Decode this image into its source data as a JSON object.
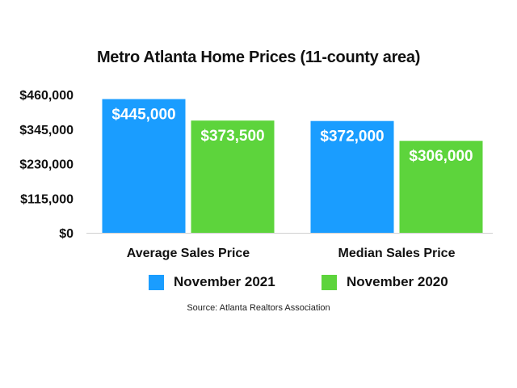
{
  "chart_data": {
    "type": "bar",
    "title": "Metro Atlanta Home Prices (11-county area)",
    "categories": [
      "Average Sales Price",
      "Median Sales Price"
    ],
    "series": [
      {
        "name": "November 2021",
        "color": "#1a9dff",
        "values": [
          445000,
          372000
        ],
        "labels": [
          "$445,000",
          "$372,000"
        ]
      },
      {
        "name": "November 2020",
        "color": "#5dd43c",
        "values": [
          373500,
          306000
        ],
        "labels": [
          "$373,500",
          "$306,000"
        ]
      }
    ],
    "ylim": [
      0,
      460000
    ],
    "yticks": [
      0,
      115000,
      230000,
      345000,
      460000
    ],
    "ytick_labels": [
      "$0",
      "$115,000",
      "$230,000",
      "$345,000",
      "$460,000"
    ],
    "xlabel": "",
    "ylabel": "",
    "grid": false,
    "legend_position": "bottom"
  },
  "source": "Source: Atlanta Realtors Association"
}
